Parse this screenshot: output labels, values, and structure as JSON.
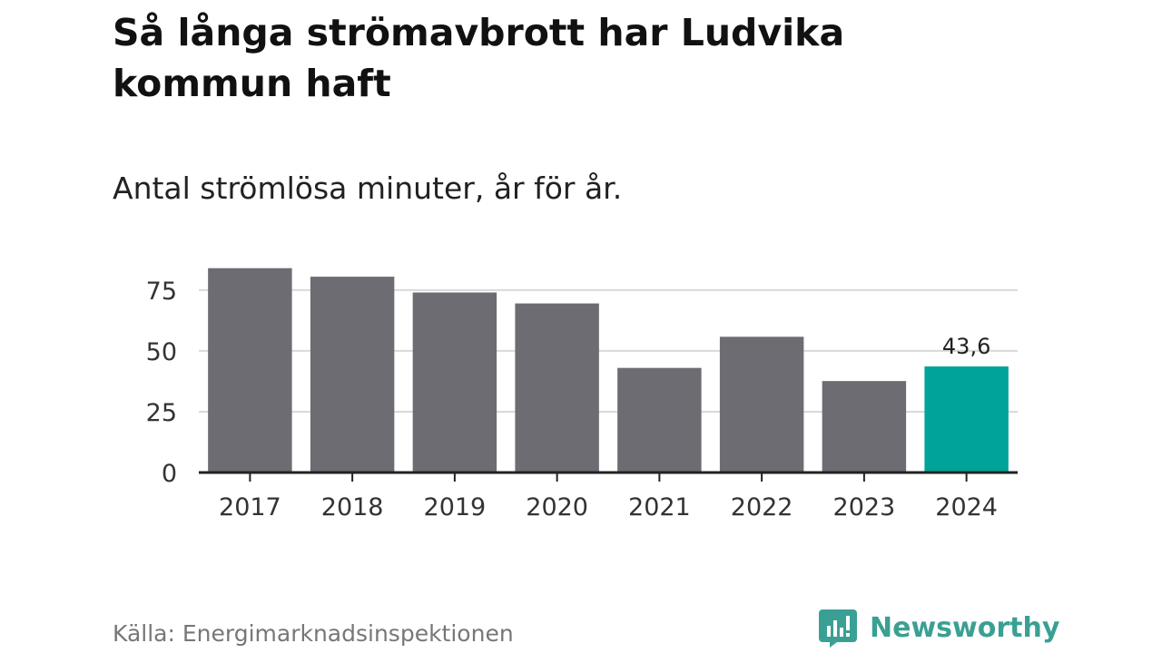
{
  "title": "Så långa strömavbrott har Ludvika kommun haft",
  "subtitle": "Antal strömlösa minuter, år för år.",
  "source": "Källa: Energimarknadsinspektionen",
  "brand": {
    "name": "Newsworthy",
    "icon": "newsworthy-logo-icon",
    "color": "#3aa093"
  },
  "colors": {
    "bar": "#6d6c72",
    "highlight": "#00a398",
    "grid": "#d9d9d9",
    "axis": "#222222"
  },
  "chart_data": {
    "type": "bar",
    "categories": [
      "2017",
      "2018",
      "2019",
      "2020",
      "2021",
      "2022",
      "2023",
      "2024"
    ],
    "values": [
      84,
      80.5,
      74,
      69.5,
      43,
      55.8,
      37.6,
      43.6
    ],
    "highlight_index": 7,
    "data_labels": [
      {
        "index": 7,
        "text": "43,6"
      }
    ],
    "yticks": [
      0,
      25,
      50,
      75
    ],
    "ytick_labels": [
      "0",
      "25",
      "50",
      "75"
    ],
    "ylim": [
      0,
      85
    ],
    "grid": true,
    "legend": "none"
  }
}
